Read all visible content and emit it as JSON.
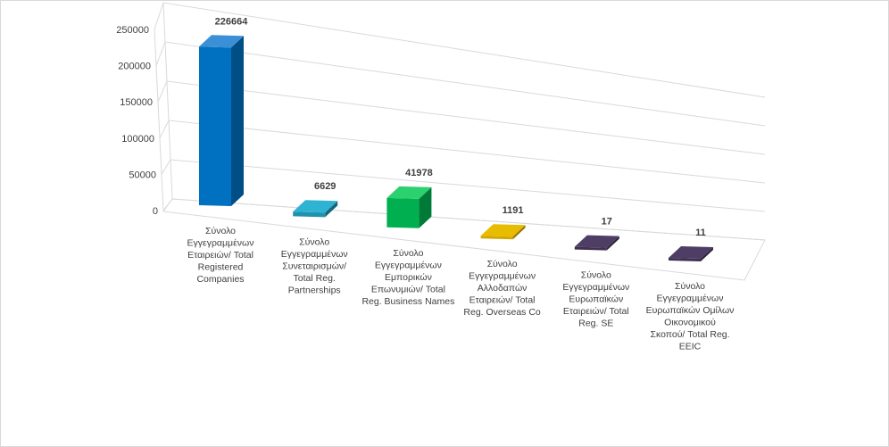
{
  "chart_data": {
    "type": "bar",
    "three_d": true,
    "title": "",
    "xlabel": "",
    "ylabel": "",
    "ylim": [
      0,
      250000
    ],
    "y_ticks": [
      0,
      50000,
      100000,
      150000,
      200000,
      250000
    ],
    "grid": true,
    "legend": "none",
    "categories": [
      "Σύνολο Εγγεγραμμένων Εταιρειών/ Total Registered Companies",
      "Σύνολο Εγγεγραμμένων Συνεταιρισμών/ Total Reg. Partnerships",
      "Σύνολο Εγγεγραμμένων Εμπορικών Επωνυμιών/ Total Reg. Business Names",
      "Σύνολο Εγγεγραμμένων Αλλοδαπών Εταιρειών/ Total Reg. Overseas Co",
      "Σύνολο Εγγεγραμμένων Ευρωπαϊκών Εταιρειών/ Total Reg. SE",
      "Σύνολο Εγγεγραμμένων Ευρωπαϊκών Ομίλων Οικονομικού Σκοπού/ Total Reg. EEIC"
    ],
    "category_lines": [
      [
        "Σύνολο",
        "Εγγεγραμμένων",
        "Εταιρειών/ Total",
        "Registered",
        "Companies"
      ],
      [
        "Σύνολο",
        "Εγγεγραμμένων",
        "Συνεταιρισμών/",
        "Total Reg.",
        "Partnerships"
      ],
      [
        "Σύνολο",
        "Εγγεγραμμένων",
        "Εμπορικών",
        "Επωνυμιών/ Total",
        "Reg. Business Names"
      ],
      [
        "Σύνολο",
        "Εγγεγραμμένων",
        "Αλλοδαπών",
        "Εταιρειών/ Total",
        "Reg. Overseas Co"
      ],
      [
        "Σύνολο",
        "Εγγεγραμμένων",
        "Ευρωπαϊκών",
        "Εταιρειών/ Total",
        "Reg. SE"
      ],
      [
        "Σύνολο",
        "Εγγεγραμμένων",
        "Ευρωπαϊκών Ομίλων",
        "Οικονομικού",
        "Σκοπού/ Total Reg.",
        "EEIC"
      ]
    ],
    "values": [
      226664,
      6629,
      41978,
      1191,
      17,
      11
    ],
    "data_labels": [
      "226664",
      "6629",
      "41978",
      "1191",
      "17",
      "11"
    ],
    "bar_colors": [
      {
        "front": "#0070C0",
        "side": "#004E86",
        "top": "#3B8FD6"
      },
      {
        "front": "#1F93AE",
        "side": "#156679",
        "top": "#2EB3D2"
      },
      {
        "front": "#00B050",
        "side": "#007A37",
        "top": "#2BD06F"
      },
      {
        "front": "#D4A800",
        "side": "#947500",
        "top": "#E8BC00"
      },
      {
        "front": "#403151",
        "side": "#2C2238",
        "top": "#4E3E66"
      },
      {
        "front": "#403151",
        "side": "#2C2238",
        "top": "#4E3E66"
      }
    ]
  }
}
